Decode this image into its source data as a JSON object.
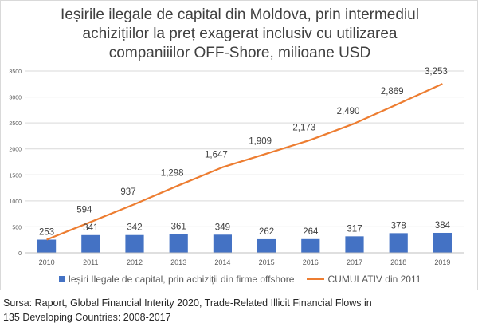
{
  "title_lines": [
    "Ieșirile ilegale de capital din Moldova, prin intermediul",
    "achizițiilor la preț exagerat inclusiv cu utilizarea",
    "companiiilor OFF-Shore, milioane USD"
  ],
  "source_lines": [
    "Sursa: Raport, Global Financial Interity 2020, Trade-Related Illicit Financial Flows in",
    "135 Developing Countries: 2008-2017"
  ],
  "colors": {
    "bar": "#4472c4",
    "line": "#ed7d31",
    "grid": "#d9d9d9",
    "text": "#595959"
  },
  "chart_data": {
    "type": "bar+line",
    "title": "Ieșirile ilegale de capital din Moldova, prin intermediul achizițiilor la preț exagerat inclusiv cu utilizarea companiiilor OFF-Shore, milioane USD",
    "categories": [
      "2010",
      "2011",
      "2012",
      "2013",
      "2014",
      "2015",
      "2016",
      "2017",
      "2018",
      "2019"
    ],
    "ylim": [
      0,
      3500
    ],
    "yticks": [
      "0",
      "500",
      "1000",
      "1500",
      "2000",
      "2500",
      "3000",
      "3500"
    ],
    "grid": true,
    "legend_position": "bottom",
    "series": [
      {
        "name": "Ieșiri Ilegale de capital, prin achiziții din firme offshore",
        "type": "bar",
        "values": [
          253,
          341,
          342,
          361,
          349,
          262,
          264,
          317,
          378,
          384
        ],
        "labels": [
          "253",
          "341",
          "342",
          "361",
          "349",
          "262",
          "264",
          "317",
          "378",
          "384"
        ]
      },
      {
        "name": "CUMULATIV din 2011",
        "type": "line",
        "values": [
          253,
          594,
          937,
          1298,
          1647,
          1909,
          2173,
          2490,
          2869,
          3253
        ],
        "labels": [
          "",
          "594",
          "937",
          "1,298",
          "1,647",
          "1,909",
          "2,173",
          "2,490",
          "2,869",
          "3,253"
        ]
      }
    ]
  }
}
